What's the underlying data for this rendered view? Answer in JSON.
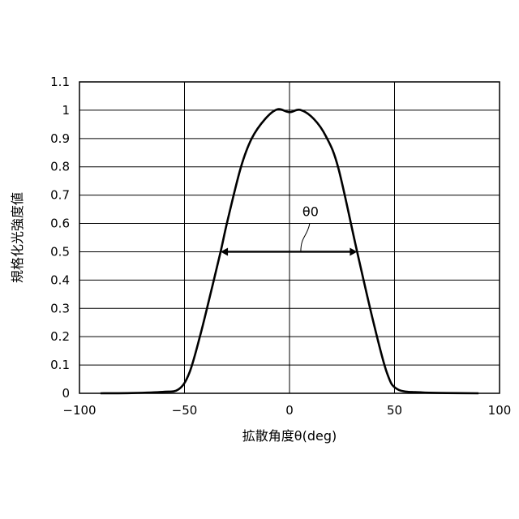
{
  "chart_data": {
    "type": "line",
    "title": "",
    "xlabel": "拡散角度θ(deg)",
    "ylabel": "規格化光強度値",
    "xlim": [
      -100,
      100
    ],
    "ylim": [
      0,
      1.1
    ],
    "xticks": [
      -100,
      -50,
      0,
      50,
      100
    ],
    "xtick_labels": [
      "−100",
      "−50",
      "0",
      "50",
      "100"
    ],
    "yticks": [
      0,
      0.1,
      0.2,
      0.3,
      0.4,
      0.5,
      0.6,
      0.7,
      0.8,
      0.9,
      1,
      1.1
    ],
    "ytick_labels": [
      "0",
      "0.1",
      "0.2",
      "0.3",
      "0.4",
      "0.5",
      "0.6",
      "0.7",
      "0.8",
      "0.9",
      "1",
      "1.1"
    ],
    "x_gridlines": [
      -50,
      0,
      50
    ],
    "y_grid": true,
    "legend": "none",
    "line_color": "#000000",
    "series": [
      {
        "x": [
          -90,
          -75,
          -60.5,
          -52.8,
          -47.7,
          -42.5,
          -37.4,
          -32.8,
          -29.6,
          -23.2,
          -18,
          -11.6,
          -5.8,
          0,
          5.1,
          11.6,
          17.4,
          23.2,
          32.2,
          39.9,
          46.4,
          51.5,
          63,
          75,
          90
        ],
        "y": [
          0,
          0.001,
          0.005,
          0.014,
          0.072,
          0.205,
          0.358,
          0.5,
          0.607,
          0.797,
          0.9,
          0.969,
          1.003,
          0.993,
          1.001,
          0.969,
          0.907,
          0.797,
          0.5,
          0.253,
          0.072,
          0.014,
          0.003,
          0.001,
          0
        ]
      }
    ],
    "annotations": [
      {
        "text": "θ0",
        "type": "double-arrow",
        "x_from": -32.8,
        "x_to": 32.2,
        "y": 0.5,
        "label_x": 10,
        "label_y": 0.64
      }
    ]
  }
}
